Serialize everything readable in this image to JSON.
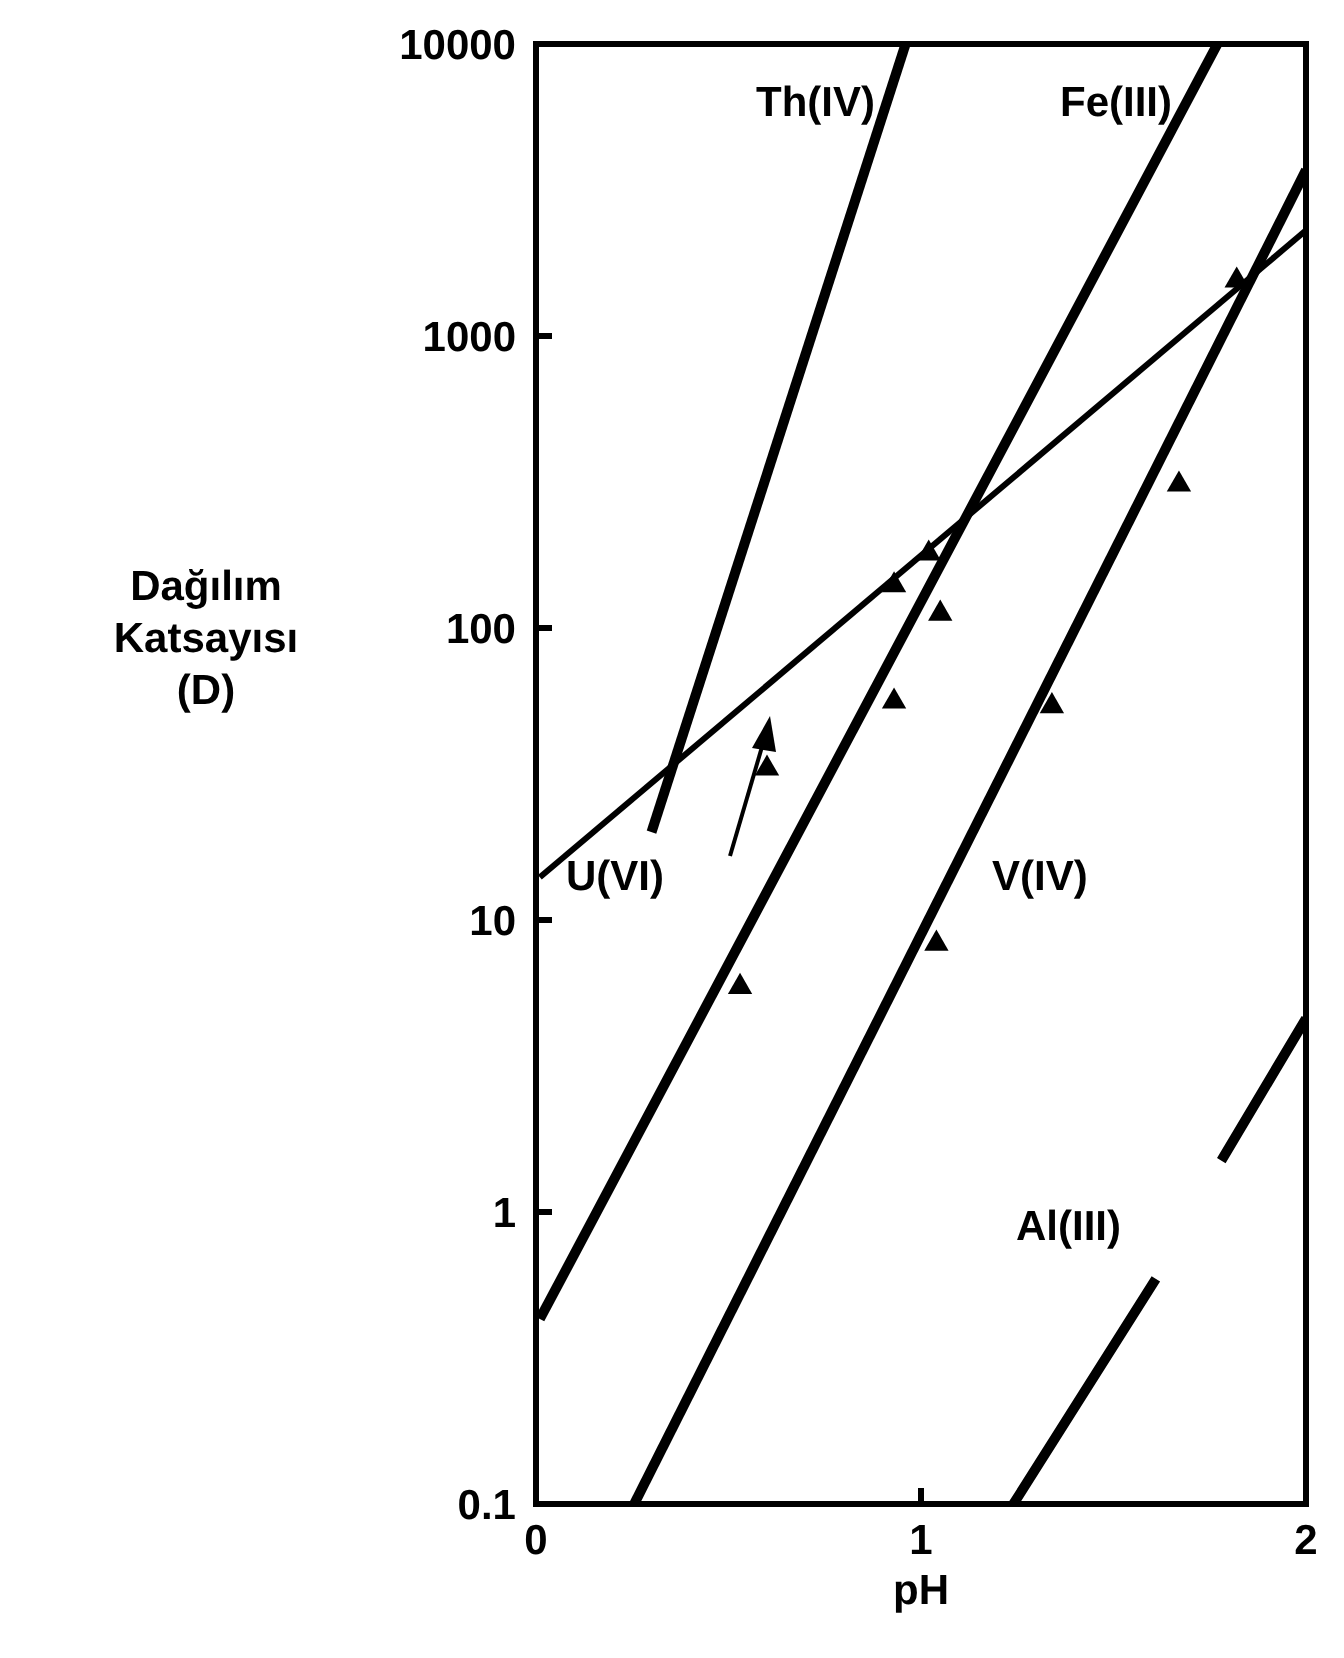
{
  "chart_data": {
    "type": "line",
    "xlabel": "pH",
    "ylabel": "Dağılım Katsayısı (D)",
    "log": "y",
    "xlim": [
      0,
      2
    ],
    "xticks": [
      0,
      1,
      2
    ],
    "ylim": [
      0.1,
      10000
    ],
    "yticks": [
      0.1,
      1,
      10,
      100,
      1000,
      10000
    ],
    "line_style": "solid",
    "series": [
      {
        "name": "Th(IV)",
        "color": "#000000",
        "x": [
          0.3,
          0.96
        ],
        "values": [
          20,
          10000
        ]
      },
      {
        "name": "Fe(III)",
        "color": "#000000",
        "x": [
          0.01,
          1.77
        ],
        "values": [
          0.43,
          10000
        ]
      },
      {
        "name": "U(VI)",
        "color": "#000000",
        "x": [
          0.01,
          2.0
        ],
        "values": [
          14,
          2300
        ]
      },
      {
        "name": "V(IV)",
        "color": "#000000",
        "x": [
          0.255,
          2.0
        ],
        "values": [
          0.1,
          3700
        ]
      },
      {
        "name": "Al(III)",
        "color": "#000000",
        "x": [
          1.24,
          1.61,
          1.7,
          1.78,
          2.0
        ],
        "values": [
          0.1,
          0.59,
          null,
          1.5,
          4.6
        ]
      },
      {
        "type": "scatter",
        "marker": "triangle",
        "color": "#000000",
        "x": [
          0.53,
          0.93,
          1.05,
          1.04,
          1.34,
          1.67,
          0.6,
          0.93,
          1.02,
          1.82
        ],
        "values": [
          5.9,
          56,
          112,
          8.3,
          54,
          310,
          33,
          140,
          180,
          1550
        ]
      }
    ]
  }
}
